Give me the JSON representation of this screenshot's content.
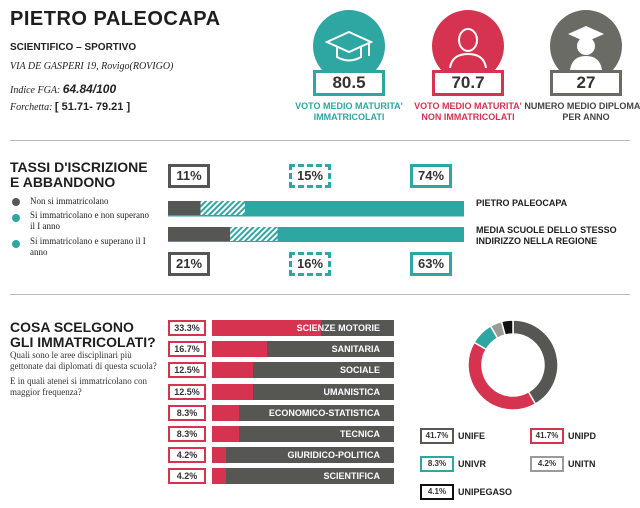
{
  "school": {
    "name": "PIETRO PALEOCAPA",
    "type": "SCIENTIFICO – SPORTIVO",
    "address": "VIA DE GASPERI 19, Rovigo(ROVIGO)",
    "fga_label": "Indice FGA:",
    "fga_value": "64.84/100",
    "range_label": "Forchetta:",
    "range_value": "[ 51.71- 79.21 ]"
  },
  "stats": [
    {
      "value": "80.5",
      "label": "VOTO MEDIO MATURITA' IMMATRICOLATI",
      "color": "#2ea6a2",
      "icon": "graduation-cap-icon"
    },
    {
      "value": "70.7",
      "label": "VOTO MEDIO MATURITA' NON IMMATRICOLATI",
      "color": "#d63350",
      "icon": "person-icon"
    },
    {
      "value": "27",
      "label": "NUMERO MEDIO DIPLOMATI PER ANNO",
      "color": "#6b6b66",
      "icon": "graduate-icon"
    }
  ],
  "enrollment": {
    "title": "TASSI D'ISCRIZIONE E ABBANDONO",
    "legend": [
      {
        "label": "Non si immatricolano",
        "color": "#565652"
      },
      {
        "label": "Si immatricolano e non superano il I anno",
        "color": "#2ea6a2",
        "hatched": true
      },
      {
        "label": "Si immatricolano e superano il I anno",
        "color": "#2ea6a2"
      }
    ],
    "school_values": [
      "11%",
      "15%",
      "74%"
    ],
    "school_fractions": [
      0.11,
      0.15,
      0.74
    ],
    "school_label": "PIETRO PALEOCAPA",
    "region_values": [
      "21%",
      "16%",
      "63%"
    ],
    "region_fractions": [
      0.21,
      0.16,
      0.63
    ],
    "region_label": "MEDIA SCUOLE DELLO STESSO INDIRIZZO NELLA REGIONE"
  },
  "choices": {
    "title": "COSA SCELGONO GLI IMMATRICOLATI?",
    "question1": "Quali sono le aree disciplinari più gettonate dai diplomati di questa scuola?",
    "question2": "E in quali atenei si immatricolano con maggior frequenza?",
    "areas": [
      {
        "pct": "33.3%",
        "value": 33.3,
        "name": "SCIENZE MOTORIE"
      },
      {
        "pct": "16.7%",
        "value": 16.7,
        "name": "SANITARIA"
      },
      {
        "pct": "12.5%",
        "value": 12.5,
        "name": "SOCIALE"
      },
      {
        "pct": "12.5%",
        "value": 12.5,
        "name": "UMANISTICA"
      },
      {
        "pct": "8.3%",
        "value": 8.3,
        "name": "ECONOMICO-STATISTICA"
      },
      {
        "pct": "8.3%",
        "value": 8.3,
        "name": "TECNICA"
      },
      {
        "pct": "4.2%",
        "value": 4.2,
        "name": "GIURIDICO-POLITICA"
      },
      {
        "pct": "4.2%",
        "value": 4.2,
        "name": "SCIENTIFICA"
      }
    ],
    "universities": [
      {
        "pct": "41.7%",
        "value": 41.7,
        "name": "UNIFE",
        "color": "#565652"
      },
      {
        "pct": "41.7%",
        "value": 41.7,
        "name": "UNIPD",
        "color": "#d63350"
      },
      {
        "pct": "8.3%",
        "value": 8.3,
        "name": "UNIVR",
        "color": "#2ea6a2"
      },
      {
        "pct": "4.2%",
        "value": 4.2,
        "name": "UNITN",
        "color": "#9a9a96"
      },
      {
        "pct": "4.1%",
        "value": 4.1,
        "name": "UNIPEGASO",
        "color": "#111111"
      }
    ]
  }
}
